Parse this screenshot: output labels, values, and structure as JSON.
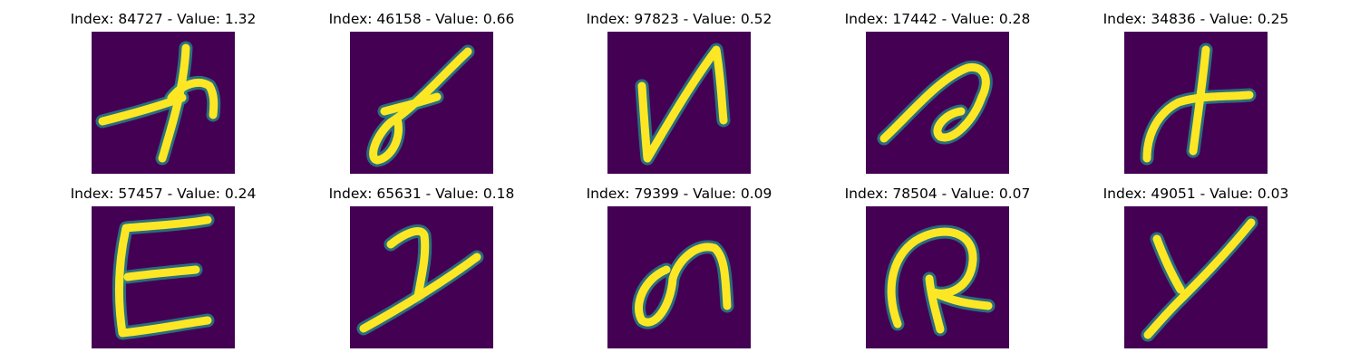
{
  "colors": {
    "background": "#440154",
    "stroke_core": "#fde725",
    "stroke_edge": "#21918c"
  },
  "panels": [
    {
      "title": "Index: 84727 - Value: 1.32",
      "image": "handwritten-glyph"
    },
    {
      "title": "Index: 46158 - Value: 0.66",
      "image": "handwritten-glyph"
    },
    {
      "title": "Index: 97823 - Value: 0.52",
      "image": "handwritten-glyph"
    },
    {
      "title": "Index: 17442 - Value: 0.28",
      "image": "handwritten-glyph"
    },
    {
      "title": "Index: 34836 - Value: 0.25",
      "image": "handwritten-glyph"
    },
    {
      "title": "Index: 57457 - Value: 0.24",
      "image": "handwritten-glyph"
    },
    {
      "title": "Index: 65631 - Value: 0.18",
      "image": "handwritten-glyph"
    },
    {
      "title": "Index: 79399 - Value: 0.09",
      "image": "handwritten-glyph"
    },
    {
      "title": "Index: 78504 - Value: 0.07",
      "image": "handwritten-glyph"
    },
    {
      "title": "Index: 49051 - Value: 0.03",
      "image": "handwritten-glyph"
    }
  ]
}
